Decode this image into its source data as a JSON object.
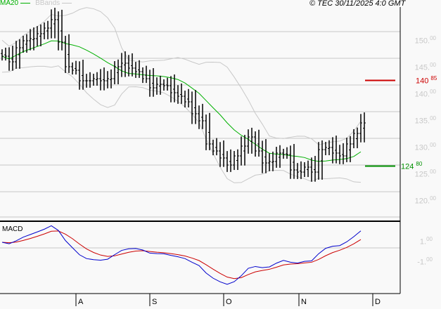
{
  "header": {
    "ma_label": "MA20",
    "bb_label": "BBands",
    "copyright": "© TEC 30/11/2025 4:0 GMT"
  },
  "macd_label": "MACD",
  "colors": {
    "ma": "#00b000",
    "bbands": "#c8c8c8",
    "bars": "#000000",
    "macd": "#0000cc",
    "signal": "#cc0000",
    "resistance": "#cc0000",
    "support": "#009000"
  },
  "chart_data": {
    "type": "ohlc",
    "price_axis": {
      "ylim": [
        118,
        155
      ],
      "ticks": [
        {
          "int": "150",
          "dec": "00",
          "v": 150
        },
        {
          "int": "145",
          "dec": "00",
          "v": 145
        },
        {
          "int": "140",
          "dec": "00",
          "v": 140
        },
        {
          "int": "135",
          "dec": "00",
          "v": 135
        },
        {
          "int": "130",
          "dec": "00",
          "v": 130
        },
        {
          "int": "125",
          "dec": "00",
          "v": 125
        },
        {
          "int": "120",
          "dec": "00",
          "v": 120
        }
      ]
    },
    "macd_axis": {
      "ticks": [
        {
          "int": "1",
          "dec": "00",
          "v": 1
        },
        {
          "int": "-1",
          "dec": "00",
          "v": -1
        }
      ]
    },
    "months": [
      "A",
      "S",
      "O",
      "N",
      "D"
    ],
    "closes": [
      145.39,
      144.34,
      146.97,
      148.29,
      148.68,
      149.61,
      150.66,
      152.24,
      148.03,
      143.42,
      142.76,
      140.79,
      140.79,
      141.18,
      140.79,
      141.18,
      143.42,
      144.08,
      143.16,
      142.5,
      141.18,
      139.47,
      140.13,
      139.87,
      138.55,
      137.89,
      136.84,
      134.61,
      133.29,
      128.95,
      127.63,
      126.32,
      125.0,
      126.71,
      128.55,
      130.26,
      127.63,
      125.39,
      125.66,
      127.24,
      126.97,
      124.08,
      123.68,
      124.61,
      123.68,
      127.89,
      128.29,
      127.24,
      126.71,
      128.95,
      130.92,
      132.89
    ],
    "levels": [
      {
        "label_int": "140",
        "label_dec": "85",
        "value": 140.85,
        "kind": "resistance"
      },
      {
        "label_int": "124",
        "label_dec": "80",
        "value": 124.8,
        "kind": "support"
      }
    ]
  }
}
